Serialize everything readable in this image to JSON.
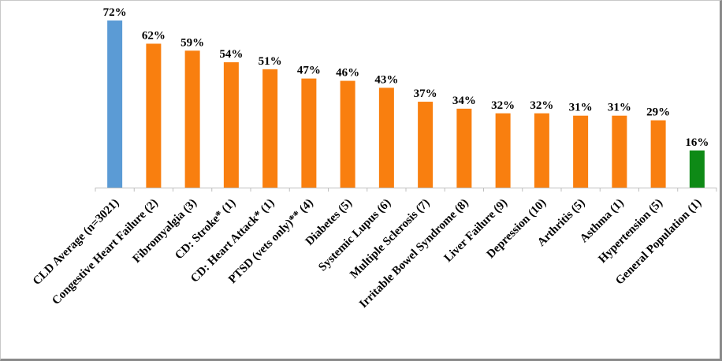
{
  "chart_data": {
    "type": "bar",
    "title": "",
    "xlabel": "",
    "ylabel": "",
    "ylim": [
      0,
      75
    ],
    "grid": false,
    "value_suffix": "%",
    "categories": [
      "CLD Average (n=3021)",
      "Congestive Heart Failure (2)",
      "Fibromyalgia (3)",
      "CD: Stroke* (1)",
      "CD: Heart Attack* (1)",
      "PTSD (vets only)** (4)",
      "Diabetes (5)",
      "Systemic Lupus (6)",
      "Multiple Sclerosis (7)",
      "Irritable Bowel Syndrome (8)",
      "Liver Failure (9)",
      "Depression (10)",
      "Arthritis (5)",
      "Asthma (1)",
      "Hypertension (5)",
      "General Population (1)"
    ],
    "values": [
      72,
      62,
      59,
      54,
      51,
      47,
      46,
      43,
      37,
      34,
      32,
      32,
      31,
      31,
      29,
      16
    ],
    "value_labels": [
      "72%",
      "62%",
      "59%",
      "54%",
      "51%",
      "47%",
      "46%",
      "43%",
      "37%",
      "34%",
      "32%",
      "32%",
      "31%",
      "31%",
      "29%",
      "16%"
    ],
    "bar_colors": [
      "#5b9bd5",
      "#f97f0f",
      "#f97f0f",
      "#f97f0f",
      "#f97f0f",
      "#f97f0f",
      "#f97f0f",
      "#f97f0f",
      "#f97f0f",
      "#f97f0f",
      "#f97f0f",
      "#f97f0f",
      "#f97f0f",
      "#f97f0f",
      "#f97f0f",
      "#0e8a16"
    ]
  }
}
